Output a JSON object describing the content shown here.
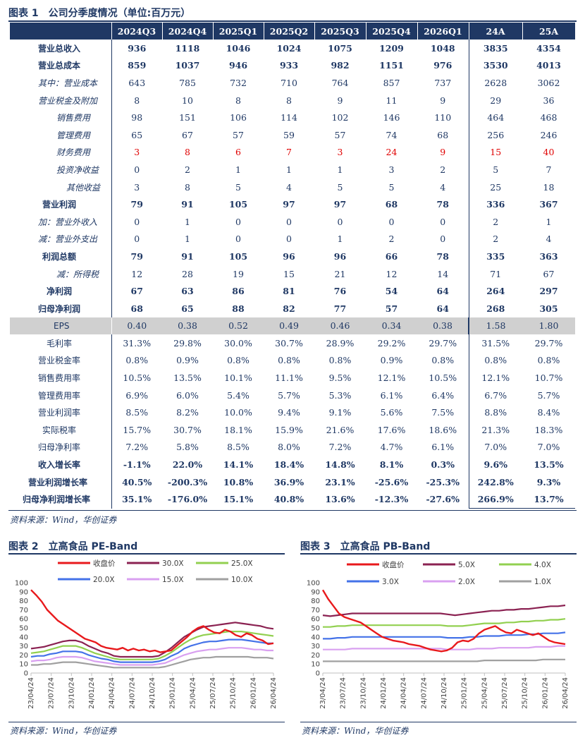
{
  "fig1": {
    "title": "图表 1　公司分季度情况（单位:百万元）",
    "headers": [
      "",
      "2024Q3",
      "2024Q4",
      "2025Q1",
      "2025Q2",
      "2025Q3",
      "2025Q4",
      "2026Q1",
      "24A",
      "25A"
    ],
    "rows": [
      {
        "label": "营业总收入",
        "style": "bold",
        "indent": 40,
        "values": [
          "936",
          "1118",
          "1046",
          "1024",
          "1075",
          "1209",
          "1048",
          "3835",
          "4354"
        ]
      },
      {
        "label": "营业总成本",
        "style": "bold",
        "indent": 40,
        "values": [
          "859",
          "1037",
          "946",
          "933",
          "982",
          "1151",
          "976",
          "3530",
          "4013"
        ]
      },
      {
        "label": "其中：营业成本",
        "style": "ital",
        "indent": 40,
        "values": [
          "643",
          "785",
          "732",
          "710",
          "764",
          "857",
          "737",
          "2628",
          "3062"
        ]
      },
      {
        "label": "营业税金及附加",
        "style": "ital",
        "indent": 40,
        "values": [
          "8",
          "10",
          "8",
          "8",
          "9",
          "11",
          "9",
          "29",
          "36"
        ]
      },
      {
        "label": "销售费用",
        "style": "ital",
        "indent": 66,
        "values": [
          "98",
          "151",
          "106",
          "114",
          "102",
          "146",
          "110",
          "464",
          "468"
        ]
      },
      {
        "label": "管理费用",
        "style": "ital",
        "indent": 66,
        "values": [
          "65",
          "67",
          "57",
          "59",
          "57",
          "74",
          "68",
          "256",
          "246"
        ]
      },
      {
        "label": "财务费用",
        "style": "ital",
        "indent": 66,
        "red": true,
        "values": [
          "3",
          "8",
          "6",
          "7",
          "3",
          "24",
          "9",
          "15",
          "40"
        ]
      },
      {
        "label": "投资净收益",
        "style": "ital",
        "indent": 66,
        "values": [
          "0",
          "2",
          "1",
          "1",
          "1",
          "3",
          "2",
          "5",
          "7"
        ]
      },
      {
        "label": "其他收益",
        "style": "ital",
        "indent": 80,
        "values": [
          "3",
          "8",
          "5",
          "4",
          "5",
          "5",
          "4",
          "25",
          "18"
        ]
      },
      {
        "label": "营业利润",
        "style": "bold",
        "indent": 46,
        "values": [
          "79",
          "91",
          "105",
          "97",
          "97",
          "68",
          "78",
          "336",
          "367"
        ]
      },
      {
        "label": "加：营业外收入",
        "style": "ital",
        "indent": 40,
        "values": [
          "0",
          "1",
          "0",
          "0",
          "0",
          "0",
          "0",
          "2",
          "1"
        ]
      },
      {
        "label": "减：营业外支出",
        "style": "ital",
        "indent": 40,
        "values": [
          "0",
          "1",
          "0",
          "0",
          "1",
          "2",
          "0",
          "2",
          "4"
        ]
      },
      {
        "label": "利润总额",
        "style": "bold",
        "indent": 46,
        "values": [
          "79",
          "91",
          "105",
          "96",
          "96",
          "66",
          "78",
          "335",
          "363"
        ]
      },
      {
        "label": "减：所得税",
        "style": "ital",
        "indent": 66,
        "values": [
          "12",
          "28",
          "19",
          "15",
          "21",
          "12",
          "14",
          "71",
          "67"
        ]
      },
      {
        "label": "净利润",
        "style": "bold",
        "indent": 52,
        "values": [
          "67",
          "63",
          "86",
          "81",
          "76",
          "54",
          "64",
          "264",
          "297"
        ]
      },
      {
        "label": "归母净利润",
        "style": "bold",
        "indent": 40,
        "values": [
          "68",
          "65",
          "88",
          "82",
          "77",
          "57",
          "64",
          "268",
          "305"
        ]
      },
      {
        "label": "EPS",
        "style": "eps",
        "indent": 62,
        "values": [
          "0.40",
          "0.38",
          "0.52",
          "0.49",
          "0.46",
          "0.34",
          "0.38",
          "1.58",
          "1.80"
        ]
      },
      {
        "label": "毛利率",
        "style": "normal",
        "indent": 52,
        "values": [
          "31.3%",
          "29.8%",
          "30.0%",
          "30.7%",
          "28.9%",
          "29.2%",
          "29.7%",
          "31.5%",
          "29.7%"
        ]
      },
      {
        "label": "营业税金率",
        "style": "normal",
        "indent": 40,
        "values": [
          "0.8%",
          "0.9%",
          "0.8%",
          "0.8%",
          "0.8%",
          "0.9%",
          "0.8%",
          "0.8%",
          "0.8%"
        ]
      },
      {
        "label": "销售费用率",
        "style": "normal",
        "indent": 40,
        "values": [
          "10.5%",
          "13.5%",
          "10.1%",
          "11.1%",
          "9.5%",
          "12.1%",
          "10.5%",
          "12.1%",
          "10.7%"
        ]
      },
      {
        "label": "管理费用率",
        "style": "normal",
        "indent": 40,
        "values": [
          "6.9%",
          "6.0%",
          "5.4%",
          "5.7%",
          "5.3%",
          "6.1%",
          "6.4%",
          "6.7%",
          "5.7%"
        ]
      },
      {
        "label": "营业利润率",
        "style": "normal",
        "indent": 40,
        "values": [
          "8.5%",
          "8.2%",
          "10.0%",
          "9.4%",
          "9.1%",
          "5.6%",
          "7.5%",
          "8.8%",
          "8.4%"
        ]
      },
      {
        "label": "实际税率",
        "style": "normal",
        "indent": 46,
        "values": [
          "15.7%",
          "30.7%",
          "18.1%",
          "15.9%",
          "21.6%",
          "17.6%",
          "18.6%",
          "21.3%",
          "18.3%"
        ]
      },
      {
        "label": "归母净利率",
        "style": "normal",
        "indent": 40,
        "values": [
          "7.2%",
          "5.8%",
          "8.5%",
          "8.0%",
          "7.2%",
          "4.7%",
          "6.1%",
          "7.0%",
          "7.0%"
        ]
      },
      {
        "label": "收入增长率",
        "style": "bold",
        "indent": 40,
        "values": [
          "-1.1%",
          "22.0%",
          "14.1%",
          "18.4%",
          "14.8%",
          "8.1%",
          "0.3%",
          "9.6%",
          "13.5%"
        ]
      },
      {
        "label": "营业利润增长率",
        "style": "bold",
        "indent": 26,
        "values": [
          "40.5%",
          "-200.3%",
          "10.8%",
          "36.9%",
          "23.1%",
          "-25.6%",
          "-25.3%",
          "242.8%",
          "9.3%"
        ]
      },
      {
        "label": "归母净利润增长率",
        "style": "bold",
        "indent": 18,
        "values": [
          "35.1%",
          "-176.0%",
          "15.1%",
          "40.8%",
          "13.6%",
          "-12.3%",
          "-27.6%",
          "266.9%",
          "13.7%"
        ]
      }
    ],
    "source": "资料来源：Wind，华创证券"
  },
  "fig2": {
    "title": "图表 2　立高食品 PE-Band",
    "source": "资料来源：Wind，华创证券"
  },
  "fig3": {
    "title": "图表 3　立高食品 PB-Band",
    "source": "资料来源：Wind，华创证券"
  },
  "chart_data": [
    {
      "type": "line",
      "title": "立高食品 PE-Band",
      "ylim": [
        0,
        100
      ],
      "yticks": [
        "0",
        "10",
        "20",
        "30",
        "40",
        "50",
        "60",
        "70",
        "80",
        "90",
        "100"
      ],
      "xticks": [
        "23/04/24",
        "23/07/24",
        "23/10/24",
        "24/01/24",
        "24/04/24",
        "24/07/24",
        "24/10/24",
        "25/01/24",
        "25/04/24",
        "25/07/24",
        "25/10/24",
        "26/01/24",
        "26/04/24"
      ],
      "legend_position": "top",
      "grid": false,
      "series": [
        {
          "name": "收盘价",
          "color": "#e8191c",
          "values": [
            92,
            86,
            79,
            70,
            64,
            58,
            54,
            50,
            46,
            42,
            38,
            36,
            34,
            30,
            28,
            27,
            26,
            28,
            25,
            27,
            25,
            26,
            24,
            25,
            23,
            24,
            25,
            30,
            35,
            40,
            46,
            50,
            52,
            48,
            45,
            44,
            48,
            46,
            42,
            40,
            44,
            42,
            38,
            36,
            32,
            33
          ]
        },
        {
          "name": "30.0X",
          "color": "#8b2252",
          "values": [
            27,
            28,
            29,
            31,
            33,
            35,
            36,
            36,
            34,
            30,
            27,
            24,
            22,
            19,
            18,
            18,
            18,
            18,
            18,
            18,
            19,
            23,
            28,
            34,
            40,
            44,
            48,
            51,
            52,
            53,
            54,
            55,
            56,
            55,
            54,
            53,
            52,
            50,
            49
          ]
        },
        {
          "name": "25.0X",
          "color": "#92d050",
          "values": [
            22,
            23,
            24,
            26,
            28,
            30,
            30,
            30,
            28,
            25,
            22,
            20,
            18,
            16,
            15,
            15,
            15,
            15,
            15,
            15,
            16,
            19,
            23,
            28,
            33,
            37,
            40,
            42,
            43,
            44,
            45,
            46,
            46,
            46,
            45,
            44,
            43,
            42,
            41
          ]
        },
        {
          "name": "20.0X",
          "color": "#4472e8",
          "values": [
            18,
            19,
            19,
            21,
            22,
            24,
            24,
            24,
            23,
            20,
            18,
            16,
            15,
            13,
            12,
            12,
            12,
            12,
            12,
            12,
            13,
            15,
            19,
            22,
            27,
            30,
            32,
            34,
            35,
            35,
            36,
            37,
            37,
            37,
            36,
            35,
            34,
            33,
            33
          ]
        },
        {
          "name": "15.0X",
          "color": "#d9a0f0",
          "values": [
            13,
            14,
            14,
            15,
            17,
            18,
            18,
            18,
            17,
            15,
            13,
            12,
            11,
            10,
            9,
            9,
            9,
            9,
            9,
            9,
            10,
            11,
            14,
            17,
            20,
            22,
            24,
            25,
            26,
            26,
            27,
            28,
            28,
            28,
            27,
            26,
            26,
            25,
            25
          ]
        },
        {
          "name": "10.0X",
          "color": "#a0a0a0",
          "values": [
            9,
            9,
            10,
            10,
            11,
            12,
            12,
            12,
            11,
            10,
            9,
            8,
            7,
            6,
            6,
            6,
            6,
            6,
            6,
            6,
            6,
            7,
            9,
            11,
            13,
            15,
            16,
            17,
            17,
            18,
            18,
            18,
            18,
            18,
            18,
            17,
            17,
            17,
            16
          ]
        }
      ]
    },
    {
      "type": "line",
      "title": "立高食品 PB-Band",
      "ylim": [
        0,
        100
      ],
      "yticks": [
        "0",
        "10",
        "20",
        "30",
        "40",
        "50",
        "60",
        "70",
        "80",
        "90",
        "100"
      ],
      "xticks": [
        "23/04/24",
        "23/07/24",
        "23/10/24",
        "24/01/24",
        "24/04/24",
        "24/07/24",
        "24/10/24",
        "25/01/24",
        "25/04/24",
        "25/07/24",
        "25/10/24",
        "26/01/24",
        "26/04/24"
      ],
      "legend_position": "top",
      "grid": false,
      "series": [
        {
          "name": "收盘价",
          "color": "#e8191c",
          "values": [
            92,
            82,
            74,
            66,
            62,
            60,
            58,
            56,
            52,
            48,
            44,
            40,
            38,
            36,
            35,
            34,
            32,
            31,
            30,
            28,
            26,
            25,
            24,
            25,
            28,
            34,
            36,
            35,
            38,
            44,
            48,
            50,
            52,
            48,
            45,
            44,
            48,
            46,
            44,
            42,
            44,
            40,
            36,
            34,
            33,
            32
          ]
        },
        {
          "name": "5.0X",
          "color": "#8b2252",
          "values": [
            64,
            63,
            64,
            65,
            66,
            66,
            66,
            66,
            66,
            66,
            66,
            66,
            66,
            66,
            66,
            66,
            66,
            65,
            64,
            65,
            66,
            67,
            68,
            69,
            69,
            70,
            70,
            71,
            71,
            72,
            73,
            74,
            74,
            75
          ]
        },
        {
          "name": "4.0X",
          "color": "#92d050",
          "values": [
            51,
            51,
            52,
            52,
            53,
            53,
            53,
            53,
            53,
            53,
            53,
            53,
            53,
            53,
            53,
            53,
            53,
            52,
            52,
            52,
            53,
            54,
            55,
            55,
            55,
            56,
            56,
            57,
            57,
            58,
            58,
            59,
            59,
            60
          ]
        },
        {
          "name": "3.0X",
          "color": "#4472e8",
          "values": [
            38,
            38,
            39,
            39,
            40,
            40,
            40,
            40,
            40,
            40,
            40,
            40,
            40,
            40,
            40,
            40,
            40,
            39,
            39,
            39,
            40,
            40,
            41,
            41,
            41,
            42,
            42,
            42,
            43,
            43,
            44,
            44,
            44,
            45
          ]
        },
        {
          "name": "2.0X",
          "color": "#d9a0f0",
          "values": [
            26,
            26,
            26,
            26,
            27,
            27,
            27,
            27,
            27,
            27,
            27,
            27,
            27,
            27,
            27,
            27,
            27,
            26,
            26,
            26,
            26,
            27,
            27,
            27,
            28,
            28,
            28,
            28,
            28,
            29,
            29,
            29,
            30,
            30
          ]
        },
        {
          "name": "1.0X",
          "color": "#a0a0a0",
          "values": [
            13,
            13,
            13,
            13,
            13,
            13,
            13,
            13,
            13,
            13,
            13,
            13,
            13,
            13,
            13,
            13,
            13,
            13,
            13,
            13,
            13,
            13,
            14,
            14,
            14,
            14,
            14,
            14,
            14,
            14,
            15,
            15,
            15,
            15
          ]
        }
      ]
    }
  ]
}
